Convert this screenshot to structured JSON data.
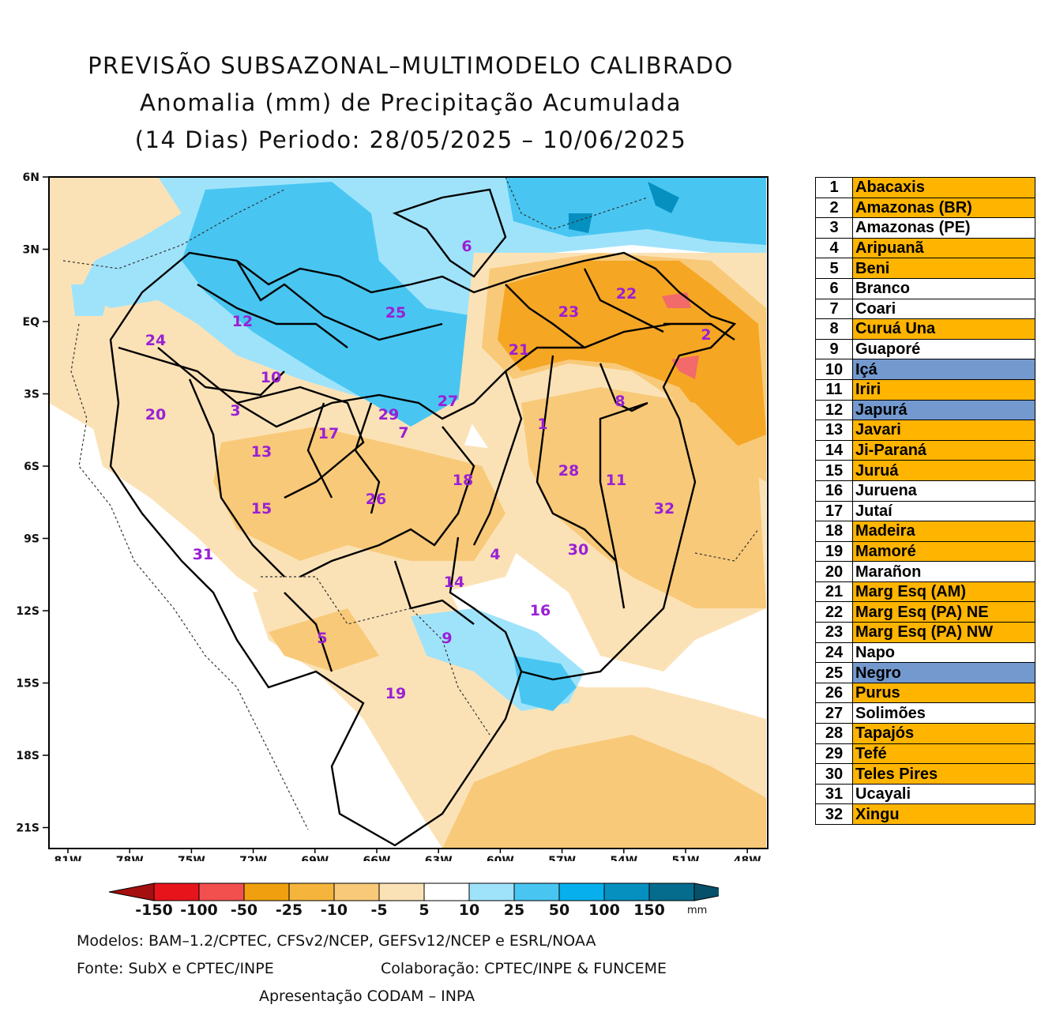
{
  "title": {
    "line1": "PREVISÃO SUBSAZONAL–MULTIMODELO CALIBRADO",
    "line2": "Anomalia (mm) de Precipitação Acumulada",
    "line3": "(14 Dias) Periodo: 28/05/2025 – 10/06/2025"
  },
  "axes": {
    "lat_labels": [
      "6N",
      "3N",
      "EQ",
      "3S",
      "6S",
      "9S",
      "12S",
      "15S",
      "18S",
      "21S"
    ],
    "lon_labels": [
      "81W",
      "78W",
      "75W",
      "72W",
      "69W",
      "66W",
      "63W",
      "60W",
      "57W",
      "54W",
      "51W",
      "48W"
    ]
  },
  "region_numbers": [
    "1",
    "2",
    "3",
    "4",
    "5",
    "6",
    "7",
    "8",
    "9",
    "10",
    "11",
    "12",
    "13",
    "14",
    "15",
    "16",
    "17",
    "18",
    "19",
    "20",
    "21",
    "22",
    "23",
    "24",
    "25",
    "26",
    "27",
    "28",
    "29",
    "30",
    "31",
    "32"
  ],
  "basins": [
    {
      "num": "1",
      "name": "Abacaxis",
      "status": "dry"
    },
    {
      "num": "2",
      "name": "Amazonas (BR)",
      "status": "dry"
    },
    {
      "num": "3",
      "name": "Amazonas (PE)",
      "status": "neutral"
    },
    {
      "num": "4",
      "name": "Aripuanã",
      "status": "dry"
    },
    {
      "num": "5",
      "name": "Beni",
      "status": "dry"
    },
    {
      "num": "6",
      "name": "Branco",
      "status": "neutral"
    },
    {
      "num": "7",
      "name": "Coari",
      "status": "neutral"
    },
    {
      "num": "8",
      "name": "Curuá Una",
      "status": "dry"
    },
    {
      "num": "9",
      "name": "Guaporé",
      "status": "neutral"
    },
    {
      "num": "10",
      "name": "Içá",
      "status": "wet"
    },
    {
      "num": "11",
      "name": "Iriri",
      "status": "dry"
    },
    {
      "num": "12",
      "name": "Japurá",
      "status": "wet"
    },
    {
      "num": "13",
      "name": "Javari",
      "status": "dry"
    },
    {
      "num": "14",
      "name": "Ji-Paraná",
      "status": "dry"
    },
    {
      "num": "15",
      "name": "Juruá",
      "status": "dry"
    },
    {
      "num": "16",
      "name": "Juruena",
      "status": "neutral"
    },
    {
      "num": "17",
      "name": "Jutaí",
      "status": "neutral"
    },
    {
      "num": "18",
      "name": "Madeira",
      "status": "dry"
    },
    {
      "num": "19",
      "name": "Mamoré",
      "status": "dry"
    },
    {
      "num": "20",
      "name": "Marañon",
      "status": "neutral"
    },
    {
      "num": "21",
      "name": "Marg Esq (AM)",
      "status": "dry"
    },
    {
      "num": "22",
      "name": "Marg Esq (PA) NE",
      "status": "dry"
    },
    {
      "num": "23",
      "name": "Marg Esq (PA) NW",
      "status": "dry"
    },
    {
      "num": "24",
      "name": "Napo",
      "status": "neutral"
    },
    {
      "num": "25",
      "name": "Negro",
      "status": "wet"
    },
    {
      "num": "26",
      "name": "Purus",
      "status": "dry"
    },
    {
      "num": "27",
      "name": "Solimões",
      "status": "neutral"
    },
    {
      "num": "28",
      "name": "Tapajós",
      "status": "dry"
    },
    {
      "num": "29",
      "name": "Tefé",
      "status": "dry"
    },
    {
      "num": "30",
      "name": "Teles Pires",
      "status": "dry"
    },
    {
      "num": "31",
      "name": "Ucayali",
      "status": "neutral"
    },
    {
      "num": "32",
      "name": "Xingu",
      "status": "dry"
    }
  ],
  "status_colors": {
    "dry": "#ffb400",
    "wet": "#7399cf",
    "neutral": "#ffffff"
  },
  "colorbar": {
    "ticks": [
      "-150",
      "-100",
      "-50",
      "-25",
      "-10",
      "-5",
      "5",
      "10",
      "25",
      "50",
      "100",
      "150"
    ],
    "unit": "mm",
    "colors": [
      "#a50f0f",
      "#e8141c",
      "#f2504f",
      "#f0a00f",
      "#f5b43c",
      "#f8c978",
      "#fbe2b6",
      "#ffffff",
      "#9fe3fb",
      "#48c6f1",
      "#07b0ec",
      "#0690c0",
      "#066c8e",
      "#06506a"
    ]
  },
  "field_colors": {
    "dry1": "#fbe2b6",
    "dry2": "#f8c978",
    "dry3": "#f5a623",
    "dry4": "#f26a6a",
    "wet1": "#9fe3fb",
    "wet2": "#48c6f1",
    "wet3": "#0690c0"
  },
  "footer": {
    "models": "Modelos: BAM–1.2/CPTEC, CFSv2/NCEP, GEFSv12/NCEP e ESRL/NOAA",
    "source": "Fonte: SubX e CPTEC/INPE",
    "collab": "Colaboração: CPTEC/INPE & FUNCEME",
    "presentation": "Apresentação CODAM – INPA"
  }
}
